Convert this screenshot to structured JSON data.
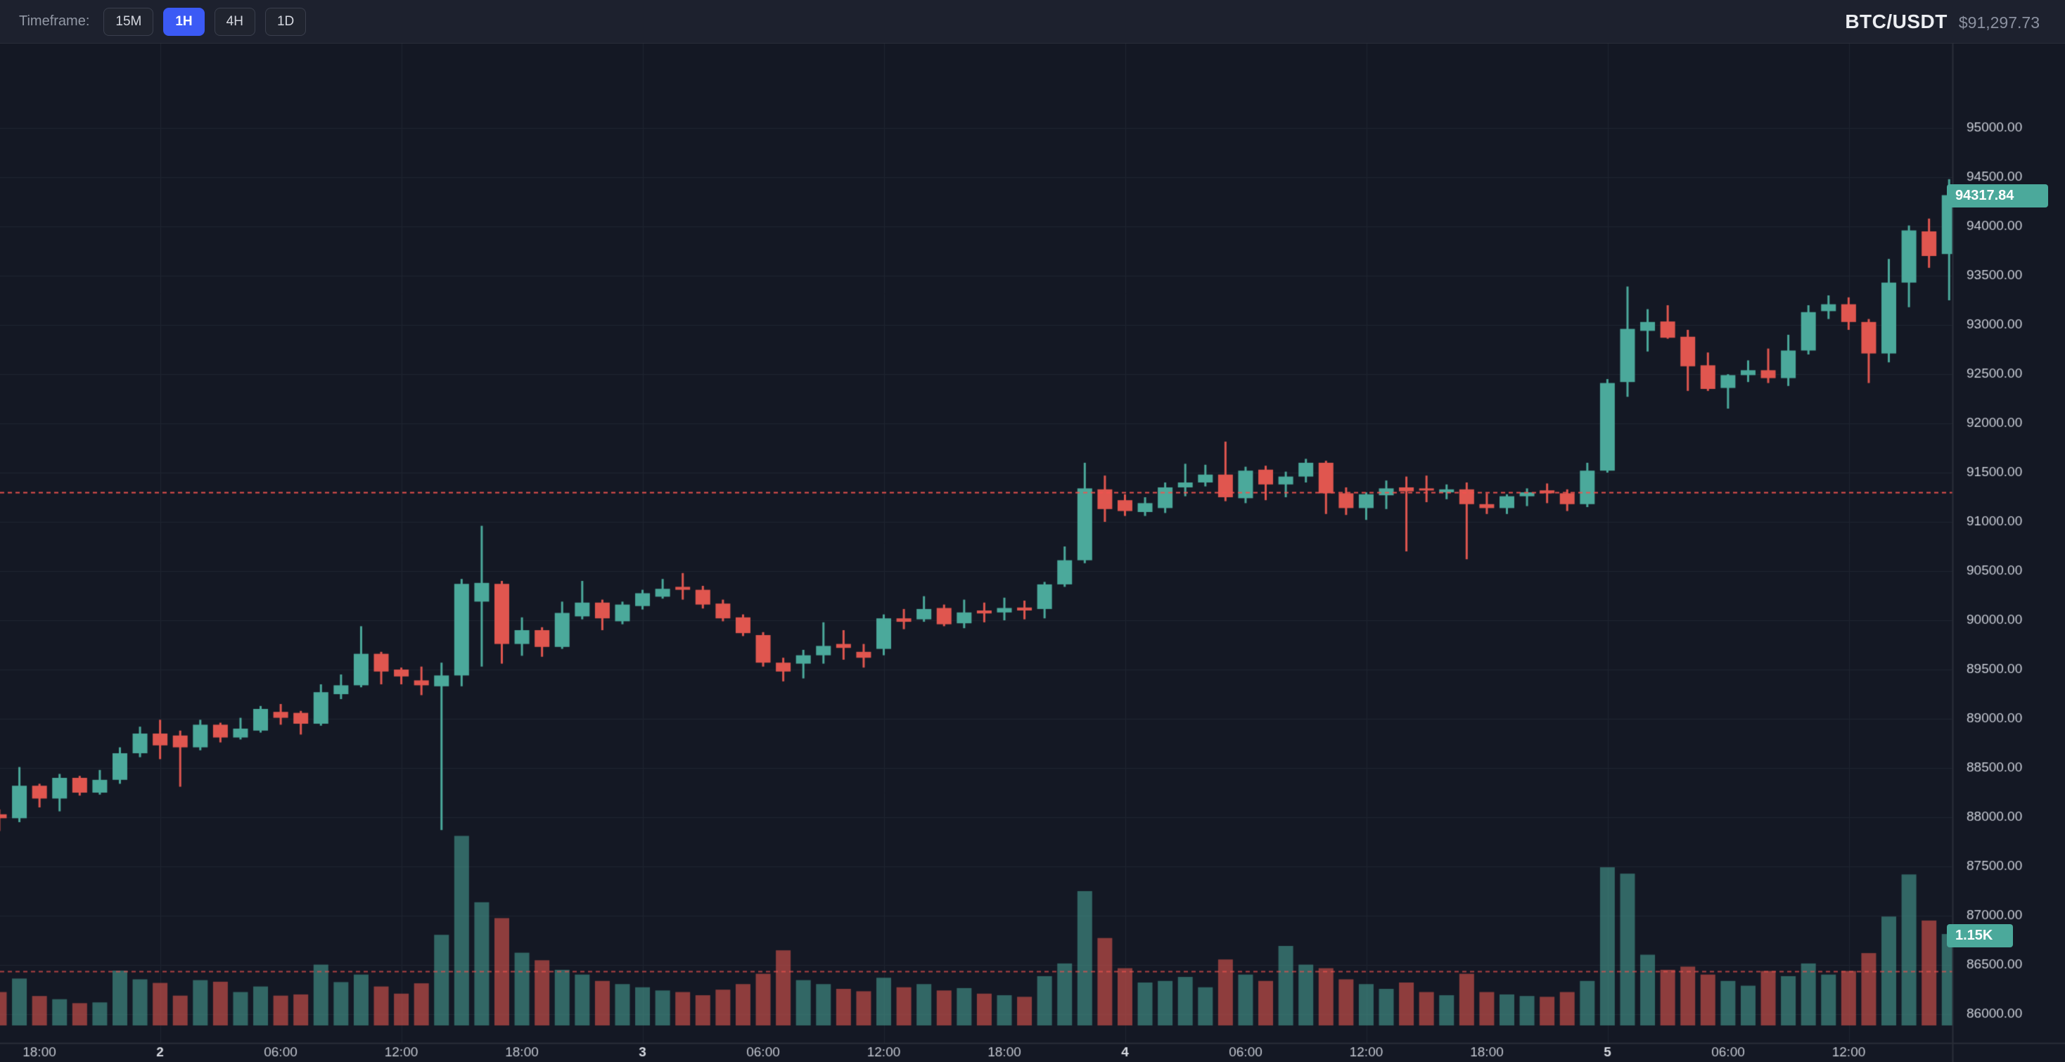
{
  "toolbar": {
    "timeframe_label": "Timeframe:",
    "buttons": [
      {
        "label": "15M",
        "active": false
      },
      {
        "label": "1H",
        "active": true
      },
      {
        "label": "4H",
        "active": false
      },
      {
        "label": "1D",
        "active": false
      }
    ],
    "symbol": "BTC/USDT",
    "price": "$91,297.73"
  },
  "chart_data": {
    "type": "candlestick",
    "symbol": "BTC/USDT",
    "interval": "1H",
    "title": "",
    "legend_position": "none",
    "grid": true,
    "price_tag": "94317.84",
    "volume_tag": "1.15K",
    "last_close": 94317.84,
    "last_volume": 1150,
    "reference_lines": [
      91297.73,
      86435
    ],
    "price_axis": {
      "min": 86000,
      "max": 95000,
      "step": 500,
      "decimals": 2
    },
    "time_axis": {
      "labels": [
        "18:00",
        "2",
        "06:00",
        "12:00",
        "18:00",
        "3",
        "06:00",
        "12:00",
        "18:00",
        "4",
        "06:00",
        "12:00",
        "18:00",
        "5",
        "06:00",
        "12:00"
      ],
      "bold": [
        false,
        true,
        false,
        false,
        false,
        true,
        false,
        false,
        false,
        true,
        false,
        false,
        false,
        true,
        false,
        false
      ]
    },
    "colors": {
      "up": "#4BA99B",
      "down": "#E0564F",
      "background": "#141824",
      "grid": "#1f2430",
      "axis_text": "#c9cdd6",
      "reference": "#EF5350",
      "volume_up": "rgba(75,169,155,0.55)",
      "volume_down": "rgba(224,86,79,0.6)"
    },
    "candles_format": [
      "open",
      "high",
      "low",
      "close",
      "volume"
    ],
    "candles": [
      [
        88030,
        88080,
        87860,
        87990,
        420
      ],
      [
        87990,
        88510,
        87950,
        88320,
        590
      ],
      [
        88320,
        88340,
        88100,
        88190,
        370
      ],
      [
        88190,
        88440,
        88060,
        88400,
        330
      ],
      [
        88400,
        88420,
        88220,
        88250,
        280
      ],
      [
        88250,
        88480,
        88230,
        88380,
        290
      ],
      [
        88380,
        88710,
        88340,
        88650,
        690
      ],
      [
        88650,
        88920,
        88610,
        88850,
        580
      ],
      [
        88850,
        88990,
        88590,
        88730,
        535
      ],
      [
        88830,
        88880,
        88310,
        88710,
        375
      ],
      [
        88710,
        88990,
        88680,
        88940,
        570
      ],
      [
        88940,
        88960,
        88760,
        88810,
        550
      ],
      [
        88810,
        89010,
        88790,
        88900,
        420
      ],
      [
        88880,
        89130,
        88860,
        89100,
        490
      ],
      [
        89070,
        89150,
        88940,
        89010,
        375
      ],
      [
        89060,
        89080,
        88840,
        88950,
        390
      ],
      [
        88950,
        89350,
        88930,
        89270,
        765
      ],
      [
        89250,
        89450,
        89200,
        89340,
        545
      ],
      [
        89340,
        89940,
        89320,
        89660,
        640
      ],
      [
        89660,
        89680,
        89350,
        89480,
        490
      ],
      [
        89500,
        89520,
        89350,
        89430,
        400
      ],
      [
        89390,
        89530,
        89240,
        89340,
        530
      ],
      [
        89330,
        89570,
        87870,
        89440,
        1140
      ],
      [
        89440,
        90420,
        89330,
        90370,
        2385
      ],
      [
        90190,
        90960,
        89530,
        90380,
        1550
      ],
      [
        90370,
        90400,
        89560,
        89760,
        1350
      ],
      [
        89760,
        90030,
        89640,
        89900,
        915
      ],
      [
        89900,
        89930,
        89630,
        89730,
        820
      ],
      [
        89730,
        90190,
        89710,
        90075,
        700
      ],
      [
        90040,
        90400,
        90010,
        90180,
        640
      ],
      [
        90180,
        90210,
        89900,
        90020,
        560
      ],
      [
        89990,
        90190,
        89960,
        90160,
        520
      ],
      [
        90145,
        90310,
        90110,
        90275,
        480
      ],
      [
        90240,
        90420,
        90220,
        90320,
        440
      ],
      [
        90340,
        90480,
        90210,
        90310,
        420
      ],
      [
        90310,
        90350,
        90120,
        90160,
        380
      ],
      [
        90170,
        90210,
        89990,
        90020,
        450
      ],
      [
        90030,
        90060,
        89840,
        89870,
        520
      ],
      [
        89850,
        89880,
        89530,
        89570,
        650
      ],
      [
        89570,
        89620,
        89380,
        89480,
        945
      ],
      [
        89560,
        89700,
        89410,
        89645,
        570
      ],
      [
        89645,
        89980,
        89560,
        89740,
        520
      ],
      [
        89760,
        89900,
        89600,
        89720,
        460
      ],
      [
        89680,
        89760,
        89520,
        89620,
        430
      ],
      [
        89710,
        90060,
        89645,
        90020,
        600
      ],
      [
        90020,
        90115,
        89910,
        89985,
        480
      ],
      [
        90010,
        90245,
        89985,
        90115,
        520
      ],
      [
        90125,
        90160,
        89940,
        89960,
        440
      ],
      [
        89970,
        90210,
        89920,
        90080,
        470
      ],
      [
        90100,
        90180,
        89980,
        90070,
        400
      ],
      [
        90080,
        90230,
        90000,
        90125,
        380
      ],
      [
        90130,
        90200,
        90010,
        90100,
        360
      ],
      [
        90115,
        90390,
        90020,
        90365,
        620
      ],
      [
        90365,
        90750,
        90340,
        90610,
        780
      ],
      [
        90610,
        91600,
        90580,
        91340,
        1690
      ],
      [
        91330,
        91470,
        91000,
        91130,
        1100
      ],
      [
        91220,
        91280,
        91060,
        91110,
        720
      ],
      [
        91100,
        91250,
        91060,
        91190,
        540
      ],
      [
        91140,
        91400,
        91090,
        91350,
        560
      ],
      [
        91350,
        91590,
        91260,
        91400,
        610
      ],
      [
        91400,
        91580,
        91360,
        91480,
        480
      ],
      [
        91480,
        91815,
        91210,
        91250,
        830
      ],
      [
        91240,
        91560,
        91190,
        91520,
        640
      ],
      [
        91530,
        91570,
        91220,
        91380,
        560
      ],
      [
        91380,
        91510,
        91250,
        91460,
        1000
      ],
      [
        91460,
        91640,
        91400,
        91600,
        765
      ],
      [
        91600,
        91620,
        91080,
        91290,
        720
      ],
      [
        91290,
        91350,
        91070,
        91140,
        580
      ],
      [
        91140,
        91300,
        91020,
        91280,
        520
      ],
      [
        91270,
        91420,
        91130,
        91340,
        460
      ],
      [
        91350,
        91460,
        90700,
        91310,
        540
      ],
      [
        91340,
        91470,
        91200,
        91320,
        420
      ],
      [
        91300,
        91380,
        91230,
        91330,
        380
      ],
      [
        91330,
        91400,
        90620,
        91180,
        650
      ],
      [
        91180,
        91290,
        91080,
        91140,
        420
      ],
      [
        91140,
        91280,
        91080,
        91260,
        390
      ],
      [
        91260,
        91340,
        91160,
        91300,
        370
      ],
      [
        91320,
        91390,
        91190,
        91290,
        360
      ],
      [
        91290,
        91330,
        91110,
        91180,
        420
      ],
      [
        91180,
        91600,
        91150,
        91520,
        560
      ],
      [
        91520,
        92450,
        91500,
        92410,
        1990
      ],
      [
        92420,
        93390,
        92270,
        92960,
        1910
      ],
      [
        92940,
        93160,
        92730,
        93030,
        890
      ],
      [
        93035,
        93200,
        92860,
        92870,
        700
      ],
      [
        92880,
        92950,
        92330,
        92580,
        740
      ],
      [
        92590,
        92720,
        92330,
        92350,
        640
      ],
      [
        92360,
        92500,
        92150,
        92490,
        560
      ],
      [
        92490,
        92640,
        92420,
        92540,
        500
      ],
      [
        92540,
        92760,
        92410,
        92460,
        685
      ],
      [
        92460,
        92900,
        92380,
        92740,
        620
      ],
      [
        92740,
        93200,
        92700,
        93130,
        780
      ],
      [
        93140,
        93300,
        93060,
        93210,
        640
      ],
      [
        93210,
        93280,
        92950,
        93030,
        685
      ],
      [
        93030,
        93060,
        92410,
        92710,
        910
      ],
      [
        92710,
        93670,
        92620,
        93430,
        1370
      ],
      [
        93430,
        94010,
        93180,
        93960,
        1900
      ],
      [
        93950,
        94080,
        93580,
        93700,
        1320
      ],
      [
        93720,
        94480,
        93250,
        94317.84,
        1150
      ]
    ]
  }
}
